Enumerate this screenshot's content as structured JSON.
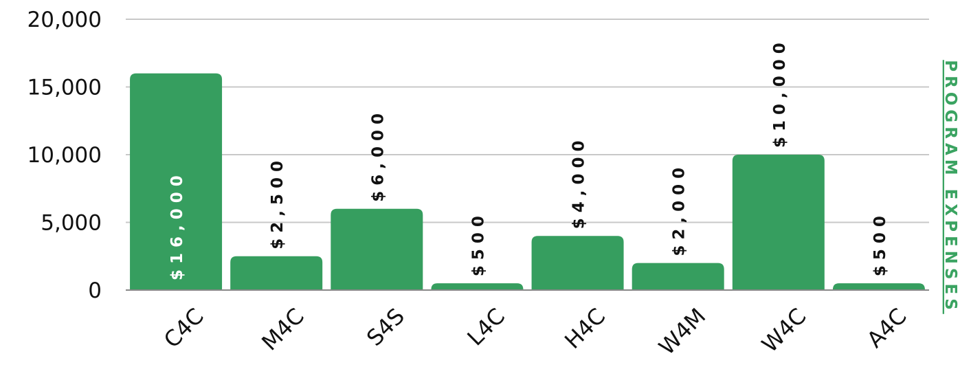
{
  "chart_data": {
    "type": "bar",
    "title": "PROGRAM EXPENSES",
    "categories": [
      "C4C",
      "M4C",
      "S4S",
      "L4C",
      "H4C",
      "W4M",
      "W4C",
      "A4C"
    ],
    "values": [
      16000,
      2500,
      6000,
      500,
      4000,
      2000,
      10000,
      500
    ],
    "data_labels": [
      "$16,000",
      "$2,500",
      "$6,000",
      "$500",
      "$4,000",
      "$2,000",
      "$10,000",
      "$500"
    ],
    "y_ticks": [
      "0",
      "5,000",
      "10,000",
      "15,000",
      "20,000"
    ],
    "ylim": [
      0,
      20000
    ],
    "grid": true,
    "legend": "none",
    "colors": {
      "bar": "#369e5f",
      "label_inside": "#ffffff",
      "label_outside": "#111111",
      "title": "#3aa361",
      "grid": "#c8c8c8",
      "axis": "#888888"
    }
  }
}
